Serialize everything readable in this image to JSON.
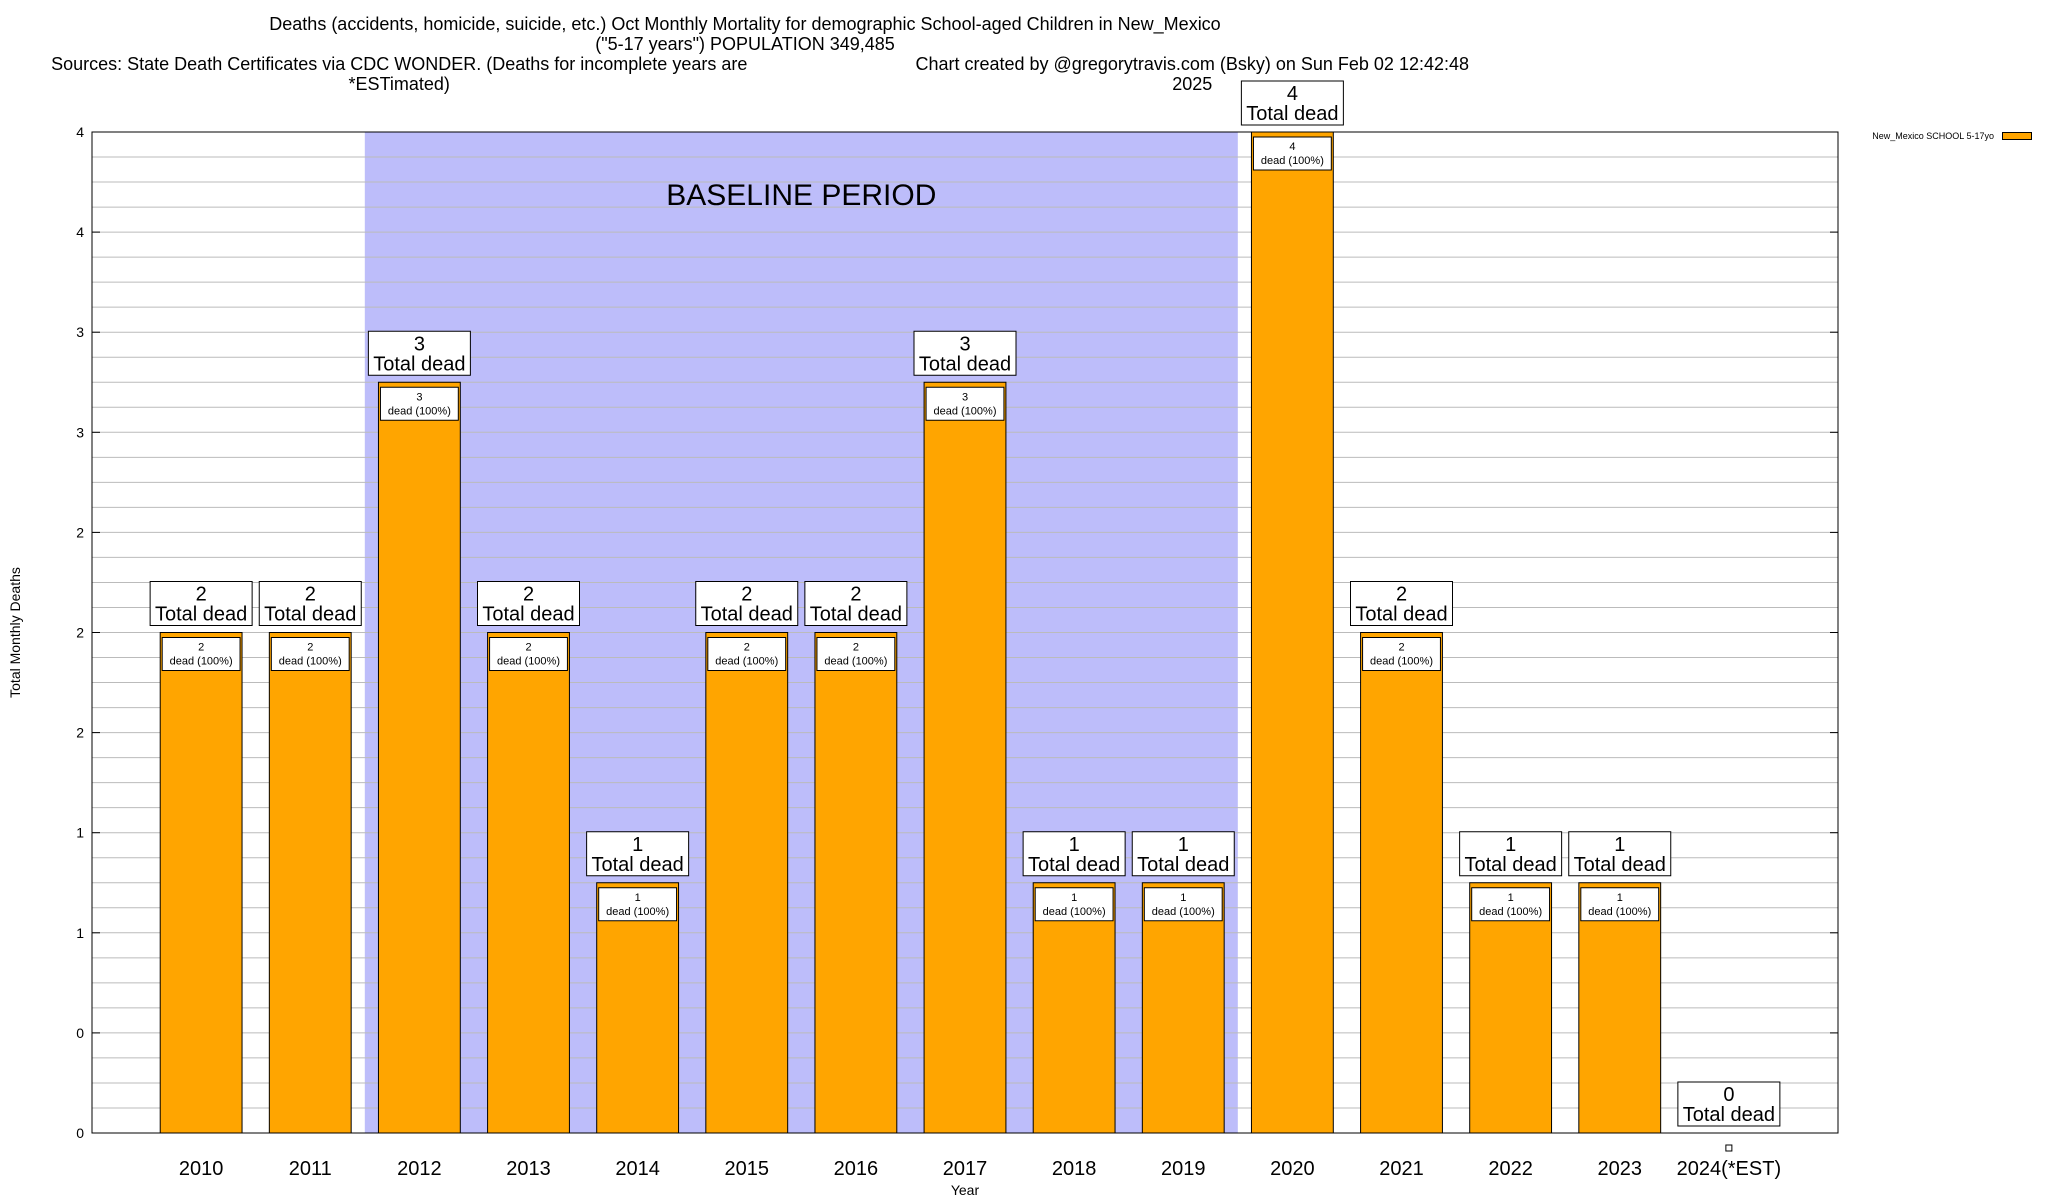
{
  "header": {
    "title_line1": "Deaths (accidents, homicide, suicide, etc.) Oct Monthly Mortality for demographic School-aged Children in New_Mexico",
    "title_line2": "(\"5-17 years\") POPULATION 349,485",
    "sources": "Sources: State Death Certificates via CDC WONDER. (Deaths for incomplete years are *ESTimated)",
    "credit": "Chart created by @gregorytravis.com (Bsky) on Sun Feb 02 12:42:48 2025"
  },
  "legend": {
    "label": "New_Mexico SCHOOL 5-17yo"
  },
  "colors": {
    "bar": "#FFA500",
    "baseline_band": "#BDBDFA",
    "grid": "#bbbbbb"
  },
  "chart_data": {
    "type": "bar",
    "categories": [
      "2010",
      "2011",
      "2012",
      "2013",
      "2014",
      "2015",
      "2016",
      "2017",
      "2018",
      "2019",
      "2020",
      "2021",
      "2022",
      "2023",
      "2024(*EST)"
    ],
    "values": [
      2,
      2,
      3,
      2,
      1,
      2,
      2,
      3,
      1,
      1,
      4,
      2,
      1,
      1,
      0
    ],
    "total_label_word": "Total dead",
    "inner_label_suffix": "dead (100%)",
    "ylim": [
      0,
      4
    ],
    "y_tick_labels": [
      "0",
      "0",
      "1",
      "1",
      "2",
      "2",
      "2",
      "3",
      "3",
      "4",
      "4"
    ],
    "xlabel": "Year",
    "ylabel": "Total Monthly Deaths",
    "baseline": {
      "label": "BASELINE PERIOD",
      "from": "2012",
      "to": "2019"
    },
    "grid": true,
    "legend_position": "top-right"
  }
}
